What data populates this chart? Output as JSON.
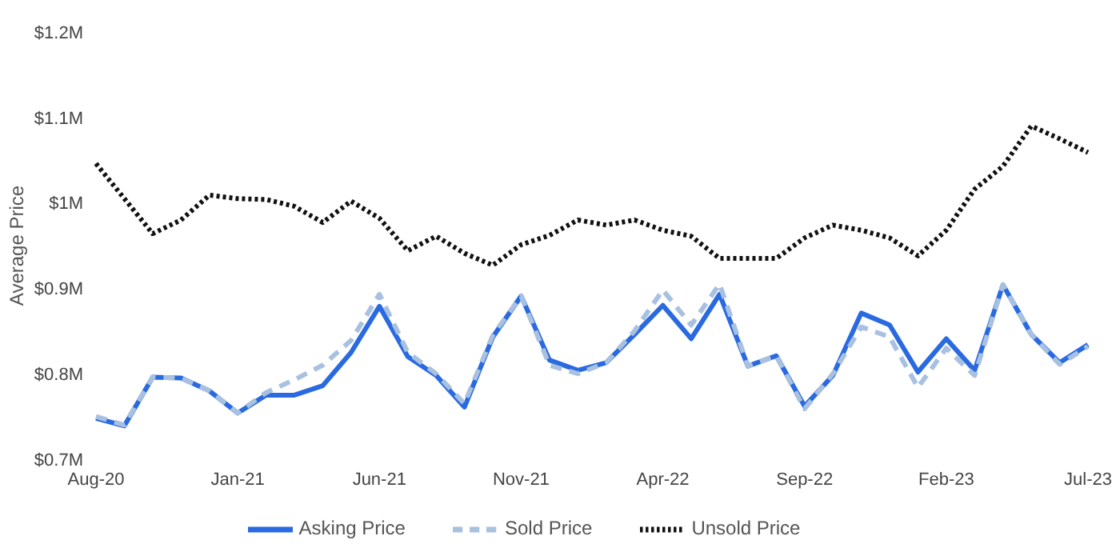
{
  "chart_data": {
    "type": "line",
    "ylabel": "Average Price",
    "categories": [
      "Aug-20",
      null,
      null,
      null,
      null,
      "Jan-21",
      null,
      null,
      null,
      null,
      "Jun-21",
      null,
      null,
      null,
      null,
      "Nov-21",
      null,
      null,
      null,
      null,
      "Apr-22",
      null,
      null,
      null,
      null,
      "Sep-22",
      null,
      null,
      null,
      null,
      "Feb-23",
      null,
      null,
      null,
      null,
      "Jul-23"
    ],
    "series": [
      {
        "name": "Asking Price",
        "color": "#2a6ae0",
        "line_style": "solid",
        "values": [
          0.748,
          0.739,
          0.796,
          0.795,
          0.78,
          0.754,
          0.775,
          0.775,
          0.786,
          0.825,
          0.879,
          0.82,
          0.798,
          0.761,
          0.843,
          0.891,
          0.816,
          0.804,
          0.813,
          0.846,
          0.88,
          0.841,
          0.893,
          0.809,
          0.821,
          0.762,
          0.798,
          0.871,
          0.857,
          0.802,
          0.841,
          0.804,
          0.904,
          0.846,
          0.813,
          0.834
        ]
      },
      {
        "name": "Sold Price",
        "color": "#a9c1e0",
        "line_style": "dashed",
        "values": [
          0.75,
          0.74,
          0.796,
          0.795,
          0.78,
          0.754,
          0.778,
          0.793,
          0.81,
          0.839,
          0.893,
          0.825,
          0.8,
          0.765,
          0.845,
          0.891,
          0.81,
          0.8,
          0.813,
          0.85,
          0.898,
          0.857,
          0.905,
          0.809,
          0.821,
          0.759,
          0.8,
          0.855,
          0.843,
          0.784,
          0.83,
          0.798,
          0.904,
          0.846,
          0.811,
          0.832
        ]
      },
      {
        "name": "Unsold Price",
        "color": "#111111",
        "line_style": "dotted",
        "values": [
          1.046,
          1.005,
          0.964,
          0.98,
          1.009,
          1.005,
          1.004,
          0.996,
          0.977,
          1.002,
          0.982,
          0.944,
          0.961,
          0.941,
          0.927,
          0.951,
          0.962,
          0.98,
          0.974,
          0.98,
          0.968,
          0.961,
          0.935,
          0.935,
          0.935,
          0.959,
          0.974,
          0.968,
          0.959,
          0.938,
          0.968,
          1.016,
          1.043,
          1.09,
          1.075,
          1.059
        ]
      }
    ],
    "ylim": [
      0.7,
      1.2
    ],
    "yticks": [
      {
        "value": 0.7,
        "label": "$0.7M"
      },
      {
        "value": 0.8,
        "label": "$0.8M"
      },
      {
        "value": 0.9,
        "label": "$0.9M"
      },
      {
        "value": 1.0,
        "label": "$1M"
      },
      {
        "value": 1.1,
        "label": "$1.1M"
      },
      {
        "value": 1.2,
        "label": "$1.2M"
      }
    ],
    "grid": false,
    "legend": "bottom",
    "marker": "none"
  }
}
